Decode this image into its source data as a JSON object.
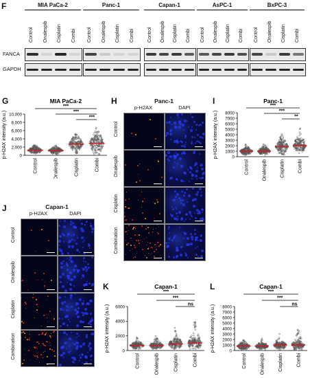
{
  "panels": {
    "F": {
      "letter": "F",
      "groups": [
        {
          "name": "MIA PaCa-2",
          "lanes": [
            "Control",
            "Onalespib",
            "Cisplatin",
            "Combi"
          ]
        },
        {
          "name": "Panc-1",
          "lanes": [
            "Control",
            "Onalespib",
            "Cisplatin",
            "Combi"
          ]
        },
        {
          "name": "Capan-1",
          "lanes": [
            "Control",
            "Onalespib",
            "Cisplatin",
            "Combi"
          ]
        },
        {
          "name": "AsPC-1",
          "lanes": [
            "Control",
            "Onalespib",
            "Cisplatin",
            "Combi"
          ]
        },
        {
          "name": "BxPC-3",
          "lanes": [
            "Control",
            "Onalespib",
            "Cisplatin",
            "Combi"
          ]
        }
      ],
      "rows": [
        "FANCA",
        "GAPDH"
      ]
    },
    "H": {
      "letter": "H",
      "title": "Panc-1",
      "columns": [
        "p-H2AX",
        "DAPI"
      ],
      "rows": [
        "Control",
        "Onalespib",
        "Cisplatin",
        "Combination"
      ]
    },
    "J": {
      "letter": "J",
      "title": "Capan-1",
      "columns": [
        "p-H2AX",
        "DAPI"
      ],
      "rows": [
        "Control",
        "Onalespib",
        "Cisplatin",
        "Combination"
      ]
    }
  },
  "chart_data": [
    {
      "panel": "G",
      "type": "scatter",
      "title": "MIA PaCa-2",
      "ylabel": "p-H2AX intensity (a.u.)",
      "categories": [
        "Control",
        "Onalespib",
        "Cisplatin",
        "Combi"
      ],
      "ylim": [
        0,
        10000
      ],
      "yticks": [
        0,
        2000,
        4000,
        6000,
        8000,
        10000
      ],
      "ytick_labels": [
        "0",
        "2,000",
        "4,000",
        "6,000",
        "8,000",
        "10,000"
      ],
      "mean": [
        1200,
        1150,
        2700,
        2900
      ],
      "spread": [
        [
          300,
          2600
        ],
        [
          300,
          2400
        ],
        [
          500,
          5200
        ],
        [
          300,
          7200
        ]
      ],
      "significance": [
        {
          "from": 0,
          "to": 3,
          "label": "***"
        },
        {
          "from": 1,
          "to": 3,
          "label": "***"
        },
        {
          "from": 2,
          "to": 3,
          "label": "***"
        }
      ]
    },
    {
      "panel": "I",
      "type": "scatter",
      "title": "Panc-1",
      "ylabel": "p-H2AX intensity (a.u.)",
      "categories": [
        "Control",
        "Onalespib",
        "Cisplatin",
        "Combi"
      ],
      "ylim": [
        0,
        8000
      ],
      "yticks": [
        0,
        1000,
        2000,
        3000,
        4000,
        5000,
        6000,
        7000,
        8000
      ],
      "ytick_labels": [
        "0",
        "1000",
        "2000",
        "3000",
        "4000",
        "5000",
        "6000",
        "7000",
        "8000"
      ],
      "mean": [
        1000,
        1000,
        1800,
        2000
      ],
      "spread": [
        [
          300,
          2300
        ],
        [
          300,
          2400
        ],
        [
          400,
          4200
        ],
        [
          500,
          5300
        ]
      ],
      "significance": [
        {
          "from": 0,
          "to": 3,
          "label": "***"
        },
        {
          "from": 1,
          "to": 3,
          "label": "***"
        },
        {
          "from": 2,
          "to": 3,
          "label": "**"
        }
      ]
    },
    {
      "panel": "K",
      "type": "scatter",
      "title": "Capan-1",
      "ylabel": "p-H2AX intensity (a.u.)",
      "categories": [
        "Control",
        "Onalespib",
        "Cisplatin",
        "Combi"
      ],
      "ylim": [
        0,
        6000
      ],
      "yticks": [
        0,
        2000,
        4000,
        6000
      ],
      "ytick_labels": [
        "0",
        "2000",
        "4000",
        "6000"
      ],
      "mean": [
        700,
        700,
        900,
        1000
      ],
      "spread": [
        [
          200,
          1800
        ],
        [
          200,
          2000
        ],
        [
          200,
          3300
        ],
        [
          200,
          4500
        ]
      ],
      "significance": [
        {
          "from": 0,
          "to": 3,
          "label": "***"
        },
        {
          "from": 1,
          "to": 3,
          "label": "***"
        },
        {
          "from": 2,
          "to": 3,
          "label": "ns"
        }
      ]
    },
    {
      "panel": "L",
      "type": "scatter",
      "title": "Capan-1",
      "ylabel": "p-H2AX intensity (a.u.)",
      "categories": [
        "Control",
        "Onalespib",
        "Cisplatin",
        "Combi"
      ],
      "ylim": [
        0,
        8000
      ],
      "yticks": [
        0,
        1000,
        2000,
        3000,
        4000,
        5000,
        6000,
        7000,
        8000
      ],
      "ytick_labels": [
        "0",
        "1000",
        "2000",
        "3000",
        "4000",
        "5000",
        "6000",
        "7000",
        "8000"
      ],
      "mean": [
        800,
        800,
        1000,
        1000
      ],
      "spread": [
        [
          200,
          2000
        ],
        [
          200,
          2200
        ],
        [
          200,
          3000
        ],
        [
          200,
          4000
        ]
      ],
      "significance": [
        {
          "from": 0,
          "to": 3,
          "label": "***"
        },
        {
          "from": 1,
          "to": 3,
          "label": "***"
        },
        {
          "from": 2,
          "to": 3,
          "label": "ns"
        }
      ]
    }
  ],
  "colors": {
    "dots": "#555555",
    "mean_line": "#e0161b",
    "bands": "#1b1b1b",
    "if_red": "#ff2a1a",
    "if_blue": "#2a3cff"
  }
}
